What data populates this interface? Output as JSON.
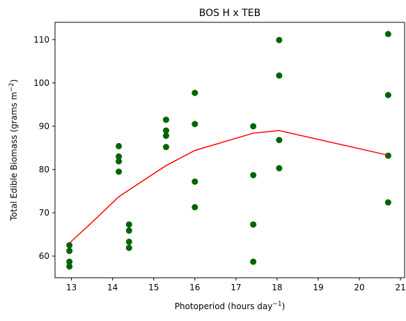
{
  "chart_data": {
    "type": "scatter",
    "title": "BOS H x TEB",
    "xlabel": "Photoperiod (hours day",
    "xlabel_sup": "−1",
    "xlabel_end": ")",
    "ylabel": "Total Edible Biomass (grams m",
    "ylabel_sup": "−2",
    "ylabel_end": ")",
    "xlim": [
      12.6,
      21.1
    ],
    "ylim": [
      55,
      114
    ],
    "xticks": [
      13,
      14,
      15,
      16,
      17,
      18,
      19,
      20,
      21
    ],
    "yticks": [
      60,
      70,
      80,
      90,
      100,
      110
    ],
    "grid": false,
    "series": [
      {
        "kind": "scatter",
        "color": "#006400",
        "points": [
          [
            12.95,
            62.5
          ],
          [
            12.95,
            61.2
          ],
          [
            12.95,
            58.7
          ],
          [
            12.95,
            57.6
          ],
          [
            14.15,
            85.4
          ],
          [
            14.15,
            83.0
          ],
          [
            14.15,
            81.9
          ],
          [
            14.15,
            79.5
          ],
          [
            14.4,
            67.3
          ],
          [
            14.4,
            65.9
          ],
          [
            14.4,
            63.3
          ],
          [
            14.4,
            61.9
          ],
          [
            15.3,
            91.5
          ],
          [
            15.3,
            89.0
          ],
          [
            15.3,
            87.8
          ],
          [
            15.3,
            85.2
          ],
          [
            16.0,
            97.7
          ],
          [
            16.0,
            90.5
          ],
          [
            16.0,
            77.2
          ],
          [
            16.0,
            71.3
          ],
          [
            17.42,
            90.0
          ],
          [
            17.42,
            78.7
          ],
          [
            17.42,
            67.3
          ],
          [
            17.42,
            58.7
          ],
          [
            18.05,
            109.9
          ],
          [
            18.05,
            101.7
          ],
          [
            18.05,
            86.8
          ],
          [
            18.05,
            80.3
          ],
          [
            20.7,
            111.3
          ],
          [
            20.7,
            97.2
          ],
          [
            20.7,
            83.2
          ],
          [
            20.7,
            72.4
          ]
        ]
      },
      {
        "kind": "line",
        "color": "#ff0000",
        "points": [
          [
            12.95,
            63.0
          ],
          [
            13.5,
            67.8
          ],
          [
            14.15,
            73.7
          ],
          [
            14.4,
            75.3
          ],
          [
            15.3,
            80.9
          ],
          [
            16.0,
            84.4
          ],
          [
            17.42,
            88.4
          ],
          [
            18.05,
            89.0
          ],
          [
            20.7,
            83.3
          ]
        ]
      }
    ]
  }
}
